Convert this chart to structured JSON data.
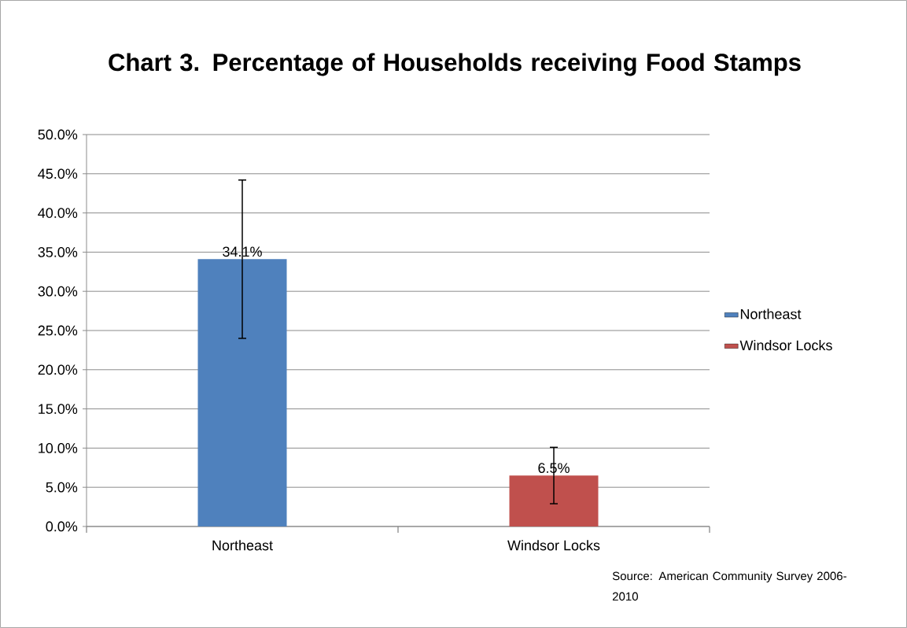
{
  "chart_data": {
    "type": "bar",
    "title": "Chart 3. Percentage of Households receiving Food Stamps",
    "categories": [
      "Northeast",
      "Windsor Locks"
    ],
    "series": [
      {
        "name": "Northeast",
        "color": "#4f81bd",
        "values": [
          34.1,
          null
        ],
        "errors": [
          10.1,
          null
        ],
        "value_labels": [
          "34.1%",
          null
        ]
      },
      {
        "name": "Windsor Locks",
        "color": "#c0504d",
        "values": [
          null,
          6.5
        ],
        "errors": [
          null,
          3.6
        ],
        "value_labels": [
          null,
          "6.5%"
        ]
      }
    ],
    "ylim": [
      0,
      50
    ],
    "yticks": [
      {
        "value": 0,
        "label": "0.0%"
      },
      {
        "value": 5,
        "label": "5.0%"
      },
      {
        "value": 10,
        "label": "10.0%"
      },
      {
        "value": 15,
        "label": "15.0%"
      },
      {
        "value": 20,
        "label": "20.0%"
      },
      {
        "value": 25,
        "label": "25.0%"
      },
      {
        "value": 30,
        "label": "30.0%"
      },
      {
        "value": 35,
        "label": "35.0%"
      },
      {
        "value": 40,
        "label": "40.0%"
      },
      {
        "value": 45,
        "label": "45.0%"
      },
      {
        "value": 50,
        "label": "50.0%"
      }
    ],
    "grid": "y",
    "legend": "right",
    "annotations": [
      "Source: American Community Survey 2006-2010"
    ]
  }
}
